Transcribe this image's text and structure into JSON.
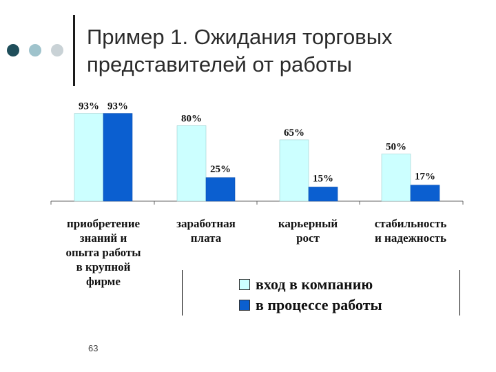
{
  "slide": {
    "title_line1": "Пример 1. Ожидания торговых",
    "title_line2": "представителей от работы",
    "page_number": "63"
  },
  "decor": {
    "dot_colors": [
      "#1f4e5a",
      "#9fc3cc",
      "#c9d2d6"
    ],
    "rule_color": "#1a1a1a"
  },
  "chart_data": {
    "type": "bar",
    "title": "",
    "xlabel": "",
    "ylabel": "",
    "ylim": [
      0,
      100
    ],
    "grid": false,
    "legend_position": "bottom-right",
    "categories": [
      [
        "приобретение",
        "знаний и",
        "опыта работы",
        "в крупной",
        "фирме"
      ],
      [
        "заработная",
        "плата"
      ],
      [
        "карьерный",
        "рост"
      ],
      [
        "стабильность",
        "и надежность"
      ]
    ],
    "series": [
      {
        "name": "вход в компанию",
        "color": "#ccffff",
        "values": [
          93,
          80,
          65,
          50
        ],
        "labels": [
          "93%",
          "80%",
          "65%",
          "50%"
        ]
      },
      {
        "name": "в процессе работы",
        "color": "#0b5fd0",
        "values": [
          93,
          25,
          15,
          17
        ],
        "labels": [
          "93%",
          "25%",
          "15%",
          "17%"
        ]
      }
    ]
  }
}
